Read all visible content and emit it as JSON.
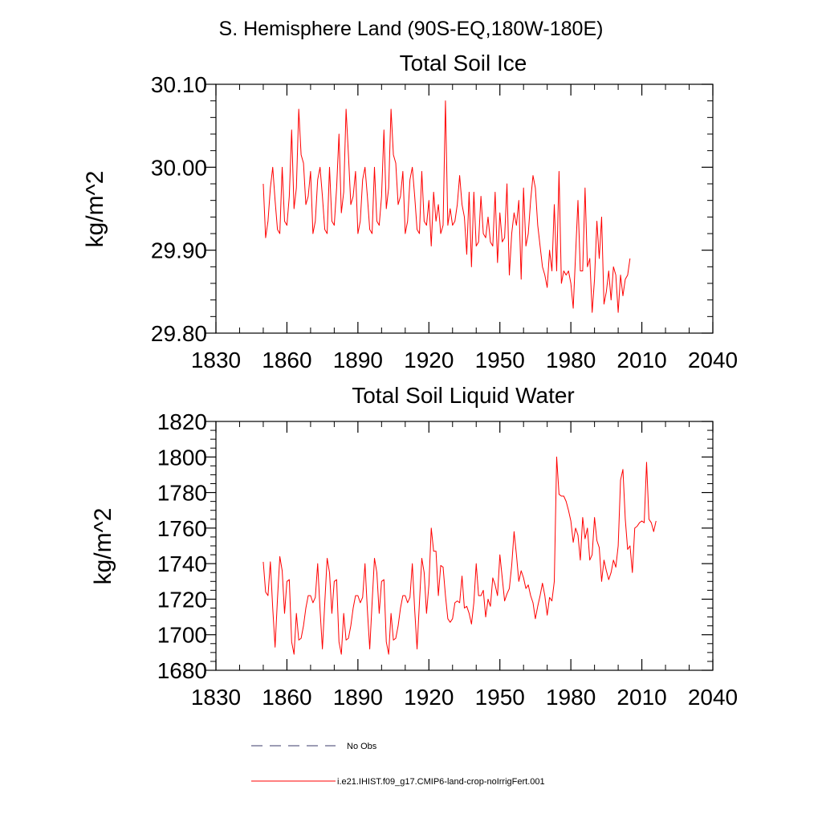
{
  "figure": {
    "supertitle": "S. Hemisphere Land (90S-EQ,180W-180E)"
  },
  "legend": {
    "entries": [
      {
        "label": "No Obs",
        "style": "dashed",
        "color": "#3a3a6a"
      },
      {
        "label": "i.e21.IHIST.f09_g17.CMIP6-land-crop-noIrrigFert.001",
        "style": "solid",
        "color": "#ff0000"
      }
    ]
  },
  "chart_data": [
    {
      "type": "line",
      "title": "Total Soil Ice",
      "xlabel": "",
      "ylabel": "kg/m^2",
      "xlim": [
        1830,
        2040
      ],
      "ylim": [
        29.8,
        30.1
      ],
      "xticks": [
        1830,
        1860,
        1890,
        1920,
        1950,
        1980,
        2010,
        2040
      ],
      "xtick_labels": [
        "1830",
        "1860",
        "1890",
        "1920",
        "1950",
        "1980",
        "2010",
        "2040"
      ],
      "yticks": [
        29.8,
        29.9,
        30.0,
        30.1
      ],
      "ytick_labels": [
        "29.80",
        "29.90",
        "30.00",
        "30.10"
      ],
      "grid": false,
      "series": [
        {
          "color": "#ff0000",
          "x_start": 1850,
          "x_step": 1,
          "values": [
            29.98,
            29.915,
            29.935,
            29.975,
            30.0,
            29.96,
            29.925,
            29.92,
            30.0,
            29.935,
            29.93,
            29.965,
            30.045,
            29.95,
            29.975,
            30.07,
            30.015,
            30.005,
            29.955,
            29.965,
            29.995,
            29.92,
            29.935,
            29.985,
            30.0,
            29.965,
            29.925,
            29.92,
            30.0,
            29.935,
            29.93,
            29.975,
            30.04,
            29.945,
            29.97,
            30.07,
            30.015,
            29.955,
            29.965,
            29.995,
            29.92,
            29.935,
            29.985,
            30.0,
            29.965,
            29.925,
            29.92,
            30.0,
            29.935,
            29.93,
            29.965,
            30.045,
            29.95,
            29.975,
            30.07,
            30.015,
            30.005,
            29.955,
            29.965,
            29.995,
            29.92,
            29.935,
            29.985,
            30.0,
            29.965,
            29.925,
            29.92,
            29.995,
            29.935,
            29.93,
            29.96,
            29.905,
            29.97,
            29.935,
            29.955,
            29.92,
            29.93,
            30.08,
            29.93,
            29.95,
            29.93,
            29.935,
            29.955,
            29.99,
            29.955,
            29.94,
            29.895,
            29.97,
            29.88,
            29.97,
            29.905,
            29.91,
            29.965,
            29.92,
            29.915,
            29.94,
            29.91,
            29.905,
            29.97,
            29.885,
            29.945,
            29.91,
            29.915,
            29.98,
            29.87,
            29.92,
            29.945,
            29.93,
            29.96,
            29.865,
            29.975,
            29.905,
            29.92,
            29.96,
            29.99,
            29.975,
            29.93,
            29.905,
            29.88,
            29.87,
            29.855,
            29.9,
            29.875,
            29.955,
            29.875,
            29.995,
            29.86,
            29.875,
            29.87,
            29.875,
            29.86,
            29.83,
            29.895,
            29.96,
            29.875,
            29.875,
            29.975,
            29.88,
            29.89,
            29.825,
            29.865,
            29.935,
            29.89,
            29.94,
            29.835,
            29.85,
            29.875,
            29.84,
            29.88,
            29.87,
            29.825,
            29.87,
            29.845,
            29.865,
            29.87,
            29.89
          ]
        }
      ]
    },
    {
      "type": "line",
      "title": "Total Soil Liquid Water",
      "xlabel": "",
      "ylabel": "kg/m^2",
      "xlim": [
        1830,
        2040
      ],
      "ylim": [
        1680,
        1820
      ],
      "xticks": [
        1830,
        1860,
        1890,
        1920,
        1950,
        1980,
        2010,
        2040
      ],
      "xtick_labels": [
        "1830",
        "1860",
        "1890",
        "1920",
        "1950",
        "1980",
        "2010",
        "2040"
      ],
      "yticks": [
        1680,
        1700,
        1720,
        1740,
        1760,
        1780,
        1800,
        1820
      ],
      "ytick_labels": [
        "1680",
        "1700",
        "1720",
        "1740",
        "1760",
        "1780",
        "1800",
        "1820"
      ],
      "grid": false,
      "series": [
        {
          "color": "#ff0000",
          "x_start": 1850,
          "x_step": 1,
          "values": [
            1741,
            1724,
            1722,
            1741,
            1715,
            1693,
            1720,
            1744,
            1736,
            1712,
            1730,
            1731,
            1696,
            1689,
            1712,
            1697,
            1698,
            1705,
            1715,
            1722,
            1722,
            1718,
            1721,
            1740,
            1714,
            1692,
            1718,
            1743,
            1735,
            1712,
            1730,
            1731,
            1696,
            1689,
            1712,
            1697,
            1698,
            1705,
            1715,
            1722,
            1722,
            1718,
            1721,
            1740,
            1714,
            1692,
            1718,
            1743,
            1735,
            1712,
            1730,
            1731,
            1696,
            1689,
            1712,
            1697,
            1698,
            1705,
            1715,
            1722,
            1722,
            1718,
            1721,
            1740,
            1714,
            1692,
            1718,
            1743,
            1735,
            1712,
            1728,
            1760,
            1747,
            1747,
            1722,
            1739,
            1738,
            1722,
            1709,
            1707,
            1709,
            1718,
            1719,
            1718,
            1733,
            1715,
            1716,
            1712,
            1706,
            1718,
            1740,
            1722,
            1722,
            1725,
            1710,
            1720,
            1716,
            1732,
            1728,
            1722,
            1745,
            1732,
            1719,
            1723,
            1726,
            1739,
            1758,
            1745,
            1730,
            1736,
            1732,
            1726,
            1728,
            1722,
            1718,
            1709,
            1716,
            1722,
            1729,
            1722,
            1711,
            1721,
            1719,
            1730,
            1800,
            1779,
            1778,
            1778,
            1775,
            1770,
            1764,
            1752,
            1760,
            1756,
            1742,
            1766,
            1754,
            1760,
            1742,
            1745,
            1766,
            1753,
            1749,
            1730,
            1742,
            1736,
            1731,
            1735,
            1742,
            1738,
            1750,
            1787,
            1793,
            1765,
            1748,
            1750,
            1735,
            1760,
            1761,
            1763,
            1764,
            1763,
            1797,
            1765,
            1763,
            1758,
            1764
          ]
        }
      ]
    }
  ]
}
